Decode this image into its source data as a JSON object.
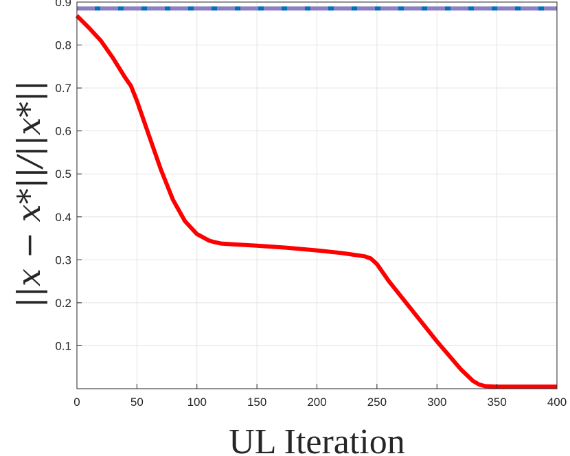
{
  "chart_data": {
    "type": "line",
    "title": "",
    "xlabel": "UL Iteration",
    "ylabel": "||x − x*||/||x*||",
    "xlim": [
      0,
      400
    ],
    "ylim": [
      0.0,
      0.9
    ],
    "grid": true,
    "legend": "none",
    "x_ticks": [
      "0",
      "50",
      "100",
      "150",
      "200",
      "250",
      "300",
      "350",
      "400"
    ],
    "y_ticks": [
      "0.1",
      "0.2",
      "0.3",
      "0.4",
      "0.5",
      "0.6",
      "0.7",
      "0.8",
      "0.9"
    ],
    "series": [
      {
        "color": "#ff0000",
        "style": "solid",
        "x": [
          0,
          10,
          20,
          30,
          40,
          45,
          50,
          60,
          70,
          80,
          90,
          100,
          110,
          115,
          120,
          130,
          150,
          175,
          200,
          220,
          240,
          245,
          250,
          260,
          280,
          300,
          320,
          330,
          335,
          340,
          350,
          375,
          400
        ],
        "y": [
          0.868,
          0.84,
          0.81,
          0.77,
          0.725,
          0.705,
          0.67,
          0.59,
          0.51,
          0.44,
          0.39,
          0.36,
          0.345,
          0.341,
          0.338,
          0.336,
          0.333,
          0.328,
          0.322,
          0.316,
          0.308,
          0.303,
          0.29,
          0.25,
          0.18,
          0.11,
          0.045,
          0.018,
          0.01,
          0.006,
          0.005,
          0.005,
          0.005
        ]
      },
      {
        "color": "#8c80c0",
        "style": "dashed",
        "x": [
          0,
          400
        ],
        "y": [
          0.885,
          0.885
        ]
      },
      {
        "color": "#0072bd",
        "style": "dotted",
        "x": [
          0,
          400
        ],
        "y": [
          0.885,
          0.885
        ]
      }
    ]
  }
}
